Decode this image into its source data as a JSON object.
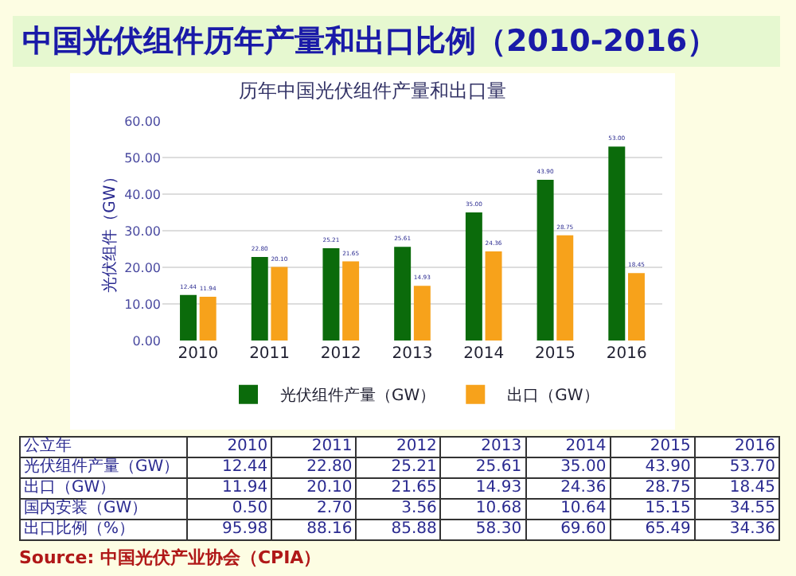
{
  "chart_data": [
    {
      "type": "bar",
      "title": "中国光伏组件历年产量和出口比例（2010-2016）",
      "subtitle": "历年中国光伏组件产量和出口量",
      "ylabel": "光伏组件（GW）",
      "categories": [
        "2010",
        "2011",
        "2012",
        "2013",
        "2014",
        "2015",
        "2016"
      ],
      "series": [
        {
          "name": "光伏组件产量（GW）",
          "color": "#0b6b0b",
          "values": [
            12.44,
            22.8,
            25.21,
            25.61,
            35.0,
            43.9,
            53.0
          ],
          "value_labels": [
            "12.44",
            "22.80",
            "25.21",
            "25.61",
            "35.00",
            "43.90",
            "53.00"
          ]
        },
        {
          "name": "出口（GW）",
          "color": "#f7a21b",
          "values": [
            11.94,
            20.1,
            21.65,
            14.93,
            24.36,
            28.75,
            18.45
          ],
          "value_labels": [
            "11.94",
            "20.10",
            "21.65",
            "14.93",
            "24.36",
            "28.75",
            "18.45"
          ]
        }
      ],
      "ylim": [
        0,
        60
      ],
      "yticks": [
        {
          "value": 0,
          "label": "0.00"
        },
        {
          "value": 10,
          "label": "10.00"
        },
        {
          "value": 20,
          "label": "20.00"
        },
        {
          "value": 30,
          "label": "30.00"
        },
        {
          "value": 40,
          "label": "40.00"
        },
        {
          "value": 50,
          "label": "50.00"
        },
        {
          "value": 60,
          "label": "60.00"
        }
      ],
      "grid": "y",
      "legend": "bottom"
    },
    {
      "type": "heatmap",
      "xlabel": "公立年",
      "categories": [
        "2010",
        "2011",
        "2012",
        "2013",
        "2014",
        "2015",
        "2016"
      ],
      "y_categories": [
        "光伏组件产量（GW）",
        "出口（GW）",
        "国内安装（GW）",
        "出口比例（%）"
      ],
      "cells": [
        [
          12.44,
          22.8,
          25.21,
          25.61,
          35.0,
          43.9,
          53.7
        ],
        [
          11.94,
          20.1,
          21.65,
          14.93,
          24.36,
          28.75,
          18.45
        ],
        [
          0.5,
          2.7,
          3.56,
          10.68,
          10.64,
          15.15,
          34.55
        ],
        [
          95.98,
          88.16,
          85.88,
          58.3,
          69.6,
          65.49,
          34.36
        ]
      ],
      "cell_labels": [
        [
          "12.44",
          "22.80",
          "25.21",
          "25.61",
          "35.00",
          "43.90",
          "53.70"
        ],
        [
          "11.94",
          "20.10",
          "21.65",
          "14.93",
          "24.36",
          "28.75",
          "18.45"
        ],
        [
          "0.50",
          "2.70",
          "3.56",
          "10.68",
          "10.64",
          "15.15",
          "34.55"
        ],
        [
          "95.98",
          "88.16",
          "85.88",
          "58.30",
          "69.60",
          "65.49",
          "34.36"
        ]
      ],
      "annotations": [
        "Source: 中国光伏产业协会（CPIA）"
      ]
    }
  ]
}
